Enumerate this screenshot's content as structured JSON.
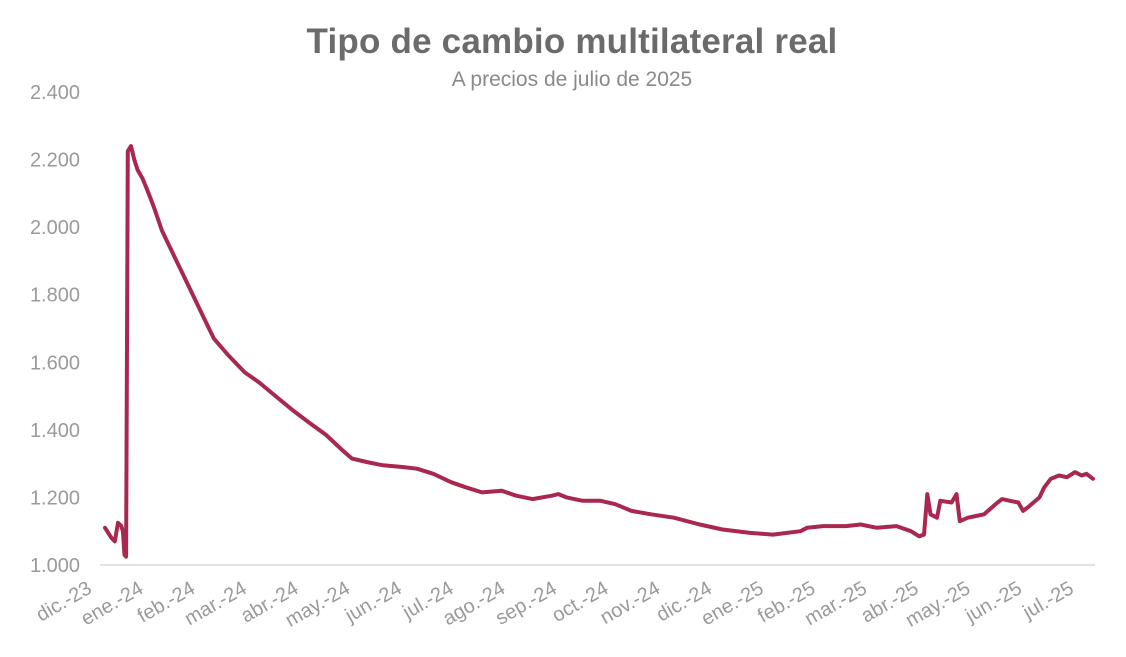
{
  "chart_data": {
    "type": "line",
    "title": "Tipo de cambio multilateral real",
    "subtitle": "A precios de julio de 2025",
    "xlabel": "",
    "ylabel": "",
    "ylim": [
      1000,
      2400
    ],
    "y_ticks": [
      "1.000",
      "1.200",
      "1.400",
      "1.600",
      "1.800",
      "2.000",
      "2.200",
      "2.400"
    ],
    "y_tick_values": [
      1000,
      1200,
      1400,
      1600,
      1800,
      2000,
      2200,
      2400
    ],
    "x_ticks": [
      "dic.-23",
      "ene.-24",
      "feb.-24",
      "mar.-24",
      "abr.-24",
      "may.-24",
      "jun.-24",
      "jul.-24",
      "ago.-24",
      "sep.-24",
      "oct.-24",
      "nov.-24",
      "dic.-24",
      "ene.-25",
      "feb.-25",
      "mar.-25",
      "abr.-25",
      "may.-25",
      "jun.-25",
      "jul.-25"
    ],
    "x_range": [
      "2023-12-01",
      "2025-07-31"
    ],
    "grid": false,
    "line_color": "#a8284f",
    "series": [
      {
        "points": [
          [
            "2023-12-01",
            1110
          ],
          [
            "2023-12-03",
            1095
          ],
          [
            "2023-12-05",
            1080
          ],
          [
            "2023-12-07",
            1070
          ],
          [
            "2023-12-09",
            1125
          ],
          [
            "2023-12-11",
            1115
          ],
          [
            "2023-12-12",
            1100
          ],
          [
            "2023-12-13",
            1030
          ],
          [
            "2023-12-14",
            1025
          ],
          [
            "2023-12-15",
            2225
          ],
          [
            "2023-12-17",
            2240
          ],
          [
            "2023-12-19",
            2200
          ],
          [
            "2023-12-21",
            2170
          ],
          [
            "2023-12-24",
            2145
          ],
          [
            "2023-12-27",
            2110
          ],
          [
            "2023-12-31",
            2060
          ],
          [
            "2024-01-05",
            1990
          ],
          [
            "2024-01-10",
            1940
          ],
          [
            "2024-01-15",
            1890
          ],
          [
            "2024-01-20",
            1840
          ],
          [
            "2024-01-25",
            1790
          ],
          [
            "2024-01-31",
            1730
          ],
          [
            "2024-02-06",
            1670
          ],
          [
            "2024-02-15",
            1620
          ],
          [
            "2024-02-25",
            1570
          ],
          [
            "2024-03-05",
            1540
          ],
          [
            "2024-03-15",
            1500
          ],
          [
            "2024-03-25",
            1460
          ],
          [
            "2024-04-05",
            1420
          ],
          [
            "2024-04-15",
            1385
          ],
          [
            "2024-04-25",
            1340
          ],
          [
            "2024-05-01",
            1315
          ],
          [
            "2024-05-10",
            1305
          ],
          [
            "2024-05-20",
            1295
          ],
          [
            "2024-06-01",
            1290
          ],
          [
            "2024-06-10",
            1285
          ],
          [
            "2024-06-20",
            1270
          ],
          [
            "2024-07-01",
            1245
          ],
          [
            "2024-07-10",
            1230
          ],
          [
            "2024-07-20",
            1215
          ],
          [
            "2024-08-01",
            1220
          ],
          [
            "2024-08-10",
            1205
          ],
          [
            "2024-08-20",
            1195
          ],
          [
            "2024-09-01",
            1205
          ],
          [
            "2024-09-05",
            1210
          ],
          [
            "2024-09-10",
            1200
          ],
          [
            "2024-09-20",
            1190
          ],
          [
            "2024-10-01",
            1190
          ],
          [
            "2024-10-10",
            1180
          ],
          [
            "2024-10-20",
            1160
          ],
          [
            "2024-11-01",
            1150
          ],
          [
            "2024-11-15",
            1140
          ],
          [
            "2024-12-01",
            1120
          ],
          [
            "2024-12-15",
            1105
          ],
          [
            "2025-01-01",
            1095
          ],
          [
            "2025-01-15",
            1090
          ],
          [
            "2025-02-01",
            1100
          ],
          [
            "2025-02-05",
            1110
          ],
          [
            "2025-02-15",
            1115
          ],
          [
            "2025-03-01",
            1115
          ],
          [
            "2025-03-10",
            1120
          ],
          [
            "2025-03-20",
            1110
          ],
          [
            "2025-04-01",
            1115
          ],
          [
            "2025-04-10",
            1100
          ],
          [
            "2025-04-15",
            1085
          ],
          [
            "2025-04-18",
            1090
          ],
          [
            "2025-04-20",
            1210
          ],
          [
            "2025-04-22",
            1150
          ],
          [
            "2025-04-26",
            1140
          ],
          [
            "2025-04-28",
            1190
          ],
          [
            "2025-05-05",
            1185
          ],
          [
            "2025-05-08",
            1210
          ],
          [
            "2025-05-10",
            1130
          ],
          [
            "2025-05-15",
            1140
          ],
          [
            "2025-05-20",
            1145
          ],
          [
            "2025-05-25",
            1150
          ],
          [
            "2025-06-01",
            1180
          ],
          [
            "2025-06-05",
            1195
          ],
          [
            "2025-06-10",
            1190
          ],
          [
            "2025-06-15",
            1185
          ],
          [
            "2025-06-18",
            1160
          ],
          [
            "2025-06-22",
            1175
          ],
          [
            "2025-06-28",
            1200
          ],
          [
            "2025-07-01",
            1230
          ],
          [
            "2025-07-05",
            1255
          ],
          [
            "2025-07-10",
            1265
          ],
          [
            "2025-07-15",
            1260
          ],
          [
            "2025-07-20",
            1275
          ],
          [
            "2025-07-24",
            1265
          ],
          [
            "2025-07-27",
            1270
          ],
          [
            "2025-07-31",
            1255
          ]
        ]
      }
    ]
  }
}
